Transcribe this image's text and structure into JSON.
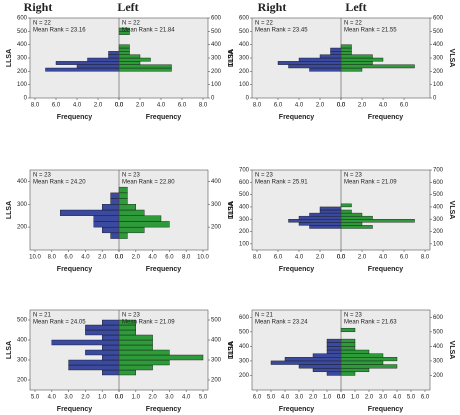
{
  "headers": [
    "Right",
    "Left",
    "Right",
    "Left"
  ],
  "chart_data": [
    {
      "type": "histogram",
      "ylabel": "LLSA",
      "y2label": "VLT1",
      "bins": [
        200,
        225,
        250,
        275,
        300,
        325,
        350,
        375,
        400,
        425,
        450,
        475,
        500,
        525
      ],
      "ylim": [
        0,
        600
      ],
      "yticks": [
        0,
        100,
        200,
        300,
        400,
        500,
        600
      ],
      "series": [
        {
          "color": "#3b4a9e",
          "values": [
            7,
            4,
            6,
            3,
            1,
            1,
            0,
            0,
            0,
            0,
            0,
            0,
            0
          ],
          "annotations": [
            "N = 22",
            "Mean Rank = 23.16"
          ],
          "xlabel": "Frequency",
          "xlim": [
            0,
            8
          ],
          "xticks": [
            {
              "value": 8,
              "label": "8.0"
            },
            {
              "value": 6,
              "label": "6.0"
            },
            {
              "value": 4,
              "label": "4.0"
            },
            {
              "value": 2,
              "label": "2.0"
            },
            {
              "value": 0,
              "label": "0.0"
            }
          ]
        },
        {
          "color": "#2e9a3a",
          "values": [
            5,
            5,
            2,
            3,
            2,
            1,
            1,
            1,
            0,
            0,
            0,
            1,
            1
          ],
          "annotations": [
            "N = 22",
            "Mean Rank = 21.84"
          ],
          "xlabel": "Frequency",
          "xlim": [
            0,
            8
          ],
          "xticks": [
            {
              "value": 0,
              "label": "0.0"
            },
            {
              "value": 2,
              "label": "2.0"
            },
            {
              "value": 4,
              "label": "4.0"
            },
            {
              "value": 6,
              "label": "6.0"
            },
            {
              "value": 8,
              "label": "8.0"
            }
          ]
        }
      ]
    },
    {
      "type": "histogram",
      "ylabel": "LLSA",
      "y2label": "VLSA",
      "bins": [
        200,
        225,
        250,
        275,
        300,
        325,
        350,
        375,
        400,
        425,
        450,
        475,
        500
      ],
      "ylim": [
        0,
        600
      ],
      "yticks": [
        0,
        100,
        200,
        300,
        400,
        500,
        600
      ],
      "series": [
        {
          "color": "#3b4a9e",
          "values": [
            3,
            5,
            6,
            4,
            2,
            1,
            1,
            0,
            0,
            0,
            0,
            0
          ],
          "annotations": [
            "N = 22",
            "Mean Rank = 23.45"
          ],
          "xlabel": "Frequency",
          "xlim": [
            0,
            8
          ],
          "xticks": [
            {
              "value": 8,
              "label": "8.0"
            },
            {
              "value": 6,
              "label": "6.0"
            },
            {
              "value": 4,
              "label": "4.0"
            },
            {
              "value": 2,
              "label": "2.0"
            },
            {
              "value": 0,
              "label": "0.0"
            }
          ]
        },
        {
          "color": "#2e9a3a",
          "values": [
            2,
            7,
            3,
            4,
            3,
            1,
            1,
            1,
            0,
            0,
            0,
            0
          ],
          "annotations": [
            "N = 22",
            "Mean Rank = 21.55"
          ],
          "xlabel": "Frequency",
          "xlim": [
            0,
            8
          ],
          "xticks": [
            {
              "value": 0,
              "label": "0.0"
            },
            {
              "value": 2,
              "label": "2.0"
            },
            {
              "value": 4,
              "label": "4.0"
            },
            {
              "value": 6,
              "label": "6.0"
            }
          ]
        }
      ]
    },
    {
      "type": "histogram",
      "ylabel": "LLSA",
      "y2label": "VLT1",
      "bins": [
        150,
        175,
        200,
        225,
        250,
        275,
        300,
        325,
        350,
        375,
        400,
        425
      ],
      "ylim": [
        100,
        450
      ],
      "yticks": [
        200,
        300,
        400
      ],
      "series": [
        {
          "color": "#3b4a9e",
          "values": [
            1,
            2,
            3,
            3,
            7,
            2,
            1,
            1,
            0,
            0,
            0
          ],
          "annotations": [
            "N = 23",
            "Mean Rank = 24.20"
          ],
          "xlabel": "Frequency",
          "xlim": [
            0,
            10
          ],
          "xticks": [
            {
              "value": 10,
              "label": "10.0"
            },
            {
              "value": 8,
              "label": "8.0"
            },
            {
              "value": 6,
              "label": "6.0"
            },
            {
              "value": 4,
              "label": "4.0"
            },
            {
              "value": 2,
              "label": "2.0"
            },
            {
              "value": 0,
              "label": "0.0"
            }
          ]
        },
        {
          "color": "#2e9a3a",
          "values": [
            1,
            3,
            6,
            5,
            3,
            2,
            1,
            1,
            1,
            0,
            0
          ],
          "annotations": [
            "N = 23",
            "Mean Rank = 22.80"
          ],
          "xlabel": "Frequency",
          "xlim": [
            0,
            10
          ],
          "xticks": [
            {
              "value": 0,
              "label": "0.0"
            },
            {
              "value": 2,
              "label": "2.0"
            },
            {
              "value": 4,
              "label": "4.0"
            },
            {
              "value": 6,
              "label": "6.0"
            },
            {
              "value": 8,
              "label": "8.0"
            },
            {
              "value": 10,
              "label": "10.0"
            }
          ]
        }
      ]
    },
    {
      "type": "histogram",
      "ylabel": "LLSA",
      "y2label": "VLSA",
      "bins": [
        225,
        250,
        275,
        300,
        325,
        350,
        375,
        400,
        425,
        450
      ],
      "ylim": [
        50,
        700
      ],
      "yticks": [
        100,
        200,
        300,
        400,
        500,
        600,
        700
      ],
      "series": [
        {
          "color": "#3b4a9e",
          "values": [
            3,
            4,
            5,
            4,
            3,
            2,
            2,
            0,
            0
          ],
          "annotations": [
            "N = 23",
            "Mean Rank = 25.91"
          ],
          "xlabel": "Frequency",
          "xlim": [
            0,
            8
          ],
          "xticks": [
            {
              "value": 8,
              "label": "8.0"
            },
            {
              "value": 6,
              "label": "6.0"
            },
            {
              "value": 4,
              "label": "4.0"
            },
            {
              "value": 2,
              "label": "2.0"
            },
            {
              "value": 0,
              "label": "0.0"
            }
          ]
        },
        {
          "color": "#2e9a3a",
          "values": [
            3,
            2,
            7,
            3,
            2,
            1,
            0,
            1,
            0
          ],
          "annotations": [
            "N = 23",
            "Mean Rank = 21.09"
          ],
          "xlabel": "Frequency",
          "xlim": [
            0,
            8
          ],
          "xticks": [
            {
              "value": 0,
              "label": "0.0"
            },
            {
              "value": 2,
              "label": "2.0"
            },
            {
              "value": 4,
              "label": "4.0"
            },
            {
              "value": 6,
              "label": "6.0"
            },
            {
              "value": 8,
              "label": "8.0"
            }
          ]
        }
      ]
    },
    {
      "type": "histogram",
      "ylabel": "LLSA",
      "y2label": "VLT1",
      "bins": [
        225,
        250,
        275,
        300,
        325,
        350,
        375,
        400,
        425,
        450,
        475,
        500,
        525
      ],
      "ylim": [
        150,
        550
      ],
      "yticks": [
        200,
        300,
        400,
        500
      ],
      "series": [
        {
          "color": "#3b4a9e",
          "values": [
            1,
            3,
            3,
            1,
            2,
            1,
            4,
            1,
            2,
            2,
            1,
            0
          ],
          "annotations": [
            "N = 21",
            "Mean Rank = 24.05"
          ],
          "xlabel": "Frequency",
          "xlim": [
            0,
            5
          ],
          "xticks": [
            {
              "value": 5,
              "label": "5.0"
            },
            {
              "value": 4,
              "label": "4.0"
            },
            {
              "value": 3,
              "label": "3.0"
            },
            {
              "value": 2,
              "label": "2.0"
            },
            {
              "value": 1,
              "label": "1.0"
            },
            {
              "value": 0,
              "label": "0.0"
            }
          ]
        },
        {
          "color": "#2e9a3a",
          "values": [
            1,
            2,
            3,
            5,
            3,
            2,
            2,
            2,
            1,
            1,
            1,
            0
          ],
          "annotations": [
            "N = 23",
            "Mean Rank = 21.09"
          ],
          "xlabel": "Frequency",
          "xlim": [
            0,
            5
          ],
          "xticks": [
            {
              "value": 0,
              "label": "0.0"
            },
            {
              "value": 1,
              "label": "1.0"
            },
            {
              "value": 2,
              "label": "2.0"
            },
            {
              "value": 3,
              "label": "3.0"
            },
            {
              "value": 4,
              "label": "4.0"
            },
            {
              "value": 5,
              "label": "5.0"
            }
          ]
        }
      ]
    },
    {
      "type": "histogram",
      "ylabel": "LLSA",
      "y2label": "VLSA",
      "bins": [
        200,
        225,
        250,
        275,
        300,
        325,
        350,
        375,
        400,
        425,
        450,
        475,
        500,
        525
      ],
      "ylim": [
        100,
        650
      ],
      "yticks": [
        200,
        300,
        400,
        500,
        600
      ],
      "series": [
        {
          "color": "#3b4a9e",
          "values": [
            1,
            2,
            3,
            5,
            4,
            2,
            1,
            1,
            1,
            1,
            0,
            0,
            0
          ],
          "annotations": [
            "N = 21",
            "Mean Rank = 23.24"
          ],
          "xlabel": "Frequency",
          "xlim": [
            0,
            6
          ],
          "xticks": [
            {
              "value": 6,
              "label": "6.0"
            },
            {
              "value": 5,
              "label": "5.0"
            },
            {
              "value": 4,
              "label": "4.0"
            },
            {
              "value": 3,
              "label": "3.0"
            },
            {
              "value": 2,
              "label": "2.0"
            },
            {
              "value": 1,
              "label": "1.0"
            },
            {
              "value": 0,
              "label": "0.0"
            }
          ]
        },
        {
          "color": "#2e9a3a",
          "values": [
            1,
            2,
            4,
            3,
            4,
            3,
            2,
            1,
            1,
            1,
            0,
            0,
            1
          ],
          "annotations": [
            "N = 23",
            "Mean Rank = 21.63"
          ],
          "xlabel": "Frequency",
          "xlim": [
            0,
            6
          ],
          "xticks": [
            {
              "value": 0,
              "label": "0.0"
            },
            {
              "value": 1,
              "label": "1.0"
            },
            {
              "value": 2,
              "label": "2.0"
            },
            {
              "value": 3,
              "label": "3.0"
            },
            {
              "value": 4,
              "label": "4.0"
            },
            {
              "value": 5,
              "label": "5.0"
            },
            {
              "value": 6,
              "label": "6.0"
            }
          ]
        }
      ]
    }
  ]
}
